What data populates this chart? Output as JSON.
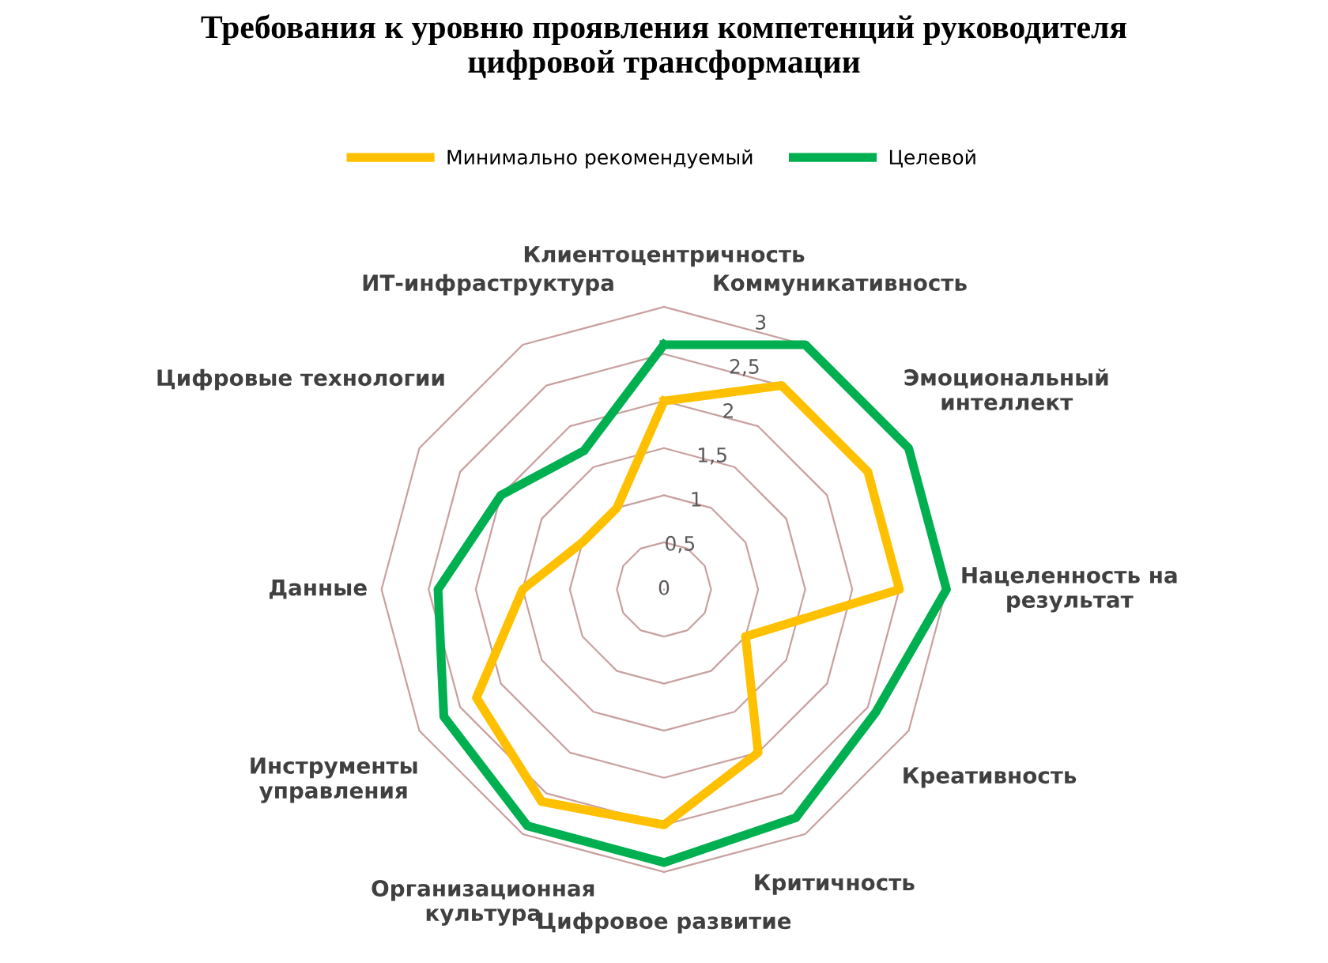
{
  "chart_data": {
    "type": "radar",
    "title": "Требования к уровню проявления компетенций руководителя\nцифровой трансформации",
    "categories": [
      "Клиентоцентричность",
      "Коммуникативность",
      "Эмоциональный\nинтеллект",
      "Нацеленность на\nрезультат",
      "Креативность",
      "Критичность",
      "Цифровое развитие",
      "Организационная\nкультура",
      "Инструменты\nуправления",
      "Данные",
      "Цифровые технологии",
      "ИТ-инфраструктура"
    ],
    "series": [
      {
        "name": "Минимально рекомендуемый",
        "color": "#ffc000",
        "values": [
          2.0,
          2.5,
          2.5,
          2.5,
          1.0,
          2.0,
          2.5,
          2.6,
          2.3,
          1.5,
          1.0,
          1.0
        ]
      },
      {
        "name": "Целевой",
        "color": "#00b050",
        "values": [
          2.6,
          3.0,
          3.0,
          3.0,
          2.6,
          2.8,
          2.9,
          2.9,
          2.7,
          2.4,
          2.0,
          1.7
        ]
      }
    ],
    "ylim": [
      0,
      3
    ],
    "yticks": [
      {
        "value": 0,
        "label": "0"
      },
      {
        "value": 0.5,
        "label": "0,5"
      },
      {
        "value": 1,
        "label": "1"
      },
      {
        "value": 1.5,
        "label": "1,5"
      },
      {
        "value": 2,
        "label": "2"
      },
      {
        "value": 2.5,
        "label": "2,5"
      },
      {
        "value": 3,
        "label": "3"
      }
    ],
    "grid": true,
    "legend": "top"
  }
}
